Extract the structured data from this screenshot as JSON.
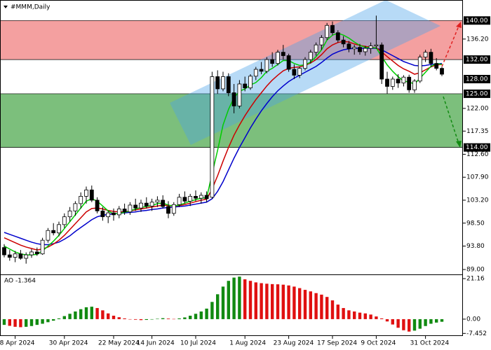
{
  "chart_data": [
    {
      "type": "candlestick",
      "title": "#MMM,Daily",
      "categories": [
        null,
        null,
        "8 Apr 2024",
        null,
        null,
        null,
        null,
        null,
        null,
        null,
        null,
        "30 Apr 2024",
        null,
        null,
        null,
        null,
        null,
        null,
        null,
        null,
        "22 May 2024",
        null,
        null,
        null,
        null,
        null,
        null,
        "14 Jun 2024",
        null,
        null,
        null,
        null,
        null,
        null,
        null,
        "10 Jul 2024",
        null,
        null,
        null,
        null,
        null,
        null,
        null,
        null,
        "1 Aug 2024",
        null,
        null,
        null,
        null,
        null,
        null,
        null,
        "23 Aug 2024",
        null,
        null,
        null,
        null,
        null,
        null,
        null,
        "17 Sep 2024",
        null,
        null,
        null,
        null,
        null,
        null,
        null,
        "9 Oct 2024",
        null,
        null,
        null,
        null,
        null,
        null,
        null,
        null,
        "31 Oct 2024",
        null,
        null,
        null
      ],
      "candles": [
        [
          93.5,
          94.2,
          91.5,
          92.0
        ],
        [
          92,
          93,
          90.8,
          91.5
        ],
        [
          91.5,
          92.8,
          90.5,
          92.2
        ],
        [
          92.2,
          93,
          91,
          91.3
        ],
        [
          91.3,
          92.5,
          90.2,
          92
        ],
        [
          92,
          93.2,
          91.4,
          92.6
        ],
        [
          92.6,
          93.5,
          91.8,
          92.2
        ],
        [
          92.2,
          95.5,
          92,
          95
        ],
        [
          95,
          97.5,
          94.5,
          97
        ],
        [
          97,
          98.5,
          96,
          96.5
        ],
        [
          96.5,
          98.8,
          95.8,
          98.2
        ],
        [
          98.2,
          100.5,
          97.5,
          99.8
        ],
        [
          99.8,
          101.8,
          98.8,
          101
        ],
        [
          101,
          103,
          100,
          102.5
        ],
        [
          102.5,
          104.8,
          101.5,
          104
        ],
        [
          104,
          106,
          102.5,
          105.3
        ],
        [
          105.3,
          106.2,
          102.8,
          103.2
        ],
        [
          103.2,
          103.8,
          100.5,
          101
        ],
        [
          101,
          101.8,
          99,
          99.8
        ],
        [
          99.8,
          101,
          98.5,
          100.6
        ],
        [
          100.6,
          101.5,
          99,
          100.2
        ],
        [
          100.2,
          102,
          99.5,
          101.4
        ],
        [
          101.4,
          102.5,
          100.2,
          100.8
        ],
        [
          100.8,
          102.8,
          100.2,
          102.2
        ],
        [
          102.2,
          103.5,
          101,
          101.6
        ],
        [
          101.6,
          103.3,
          100.8,
          102.6
        ],
        [
          102.6,
          103.8,
          101.5,
          102
        ],
        [
          102,
          103.5,
          101,
          102.8
        ],
        [
          102.8,
          104,
          101.8,
          103.2
        ],
        [
          103.2,
          104.2,
          101.5,
          101.9
        ],
        [
          101.9,
          103,
          99.5,
          100.5
        ],
        [
          100.5,
          102.8,
          100,
          102.3
        ],
        [
          102.3,
          104.5,
          101.8,
          103.8
        ],
        [
          103.8,
          105,
          102.5,
          103
        ],
        [
          103,
          104.5,
          102,
          104
        ],
        [
          104,
          105.2,
          103,
          103.6
        ],
        [
          103.6,
          104.8,
          102.5,
          104.2
        ],
        [
          104.2,
          105,
          102.8,
          103.5
        ],
        [
          103.8,
          129.5,
          103.5,
          128.5
        ],
        [
          128.5,
          129.8,
          125,
          126
        ],
        [
          126,
          129.5,
          125.5,
          128.5
        ],
        [
          128.5,
          129.2,
          124.5,
          125.2
        ],
        [
          125.2,
          127,
          121,
          122.5
        ],
        [
          122.5,
          127.8,
          122,
          127
        ],
        [
          127,
          128.5,
          125.5,
          126.2
        ],
        [
          126.2,
          129,
          125.8,
          128.6
        ],
        [
          128.6,
          130.5,
          127.8,
          130
        ],
        [
          130,
          131.5,
          129,
          129.6
        ],
        [
          129.6,
          132.5,
          129.2,
          132
        ],
        [
          132,
          133.5,
          130.5,
          131.2
        ],
        [
          131.2,
          134,
          130.8,
          133.5
        ],
        [
          133.5,
          135,
          132,
          132.8
        ],
        [
          132.8,
          133.2,
          129.5,
          130
        ],
        [
          130,
          131,
          128,
          128.8
        ],
        [
          128.8,
          130.5,
          128.2,
          130.2
        ],
        [
          130.2,
          132.5,
          129.8,
          132
        ],
        [
          132,
          134,
          131.2,
          133.5
        ],
        [
          133.5,
          135.5,
          132.8,
          135
        ],
        [
          135,
          137,
          134,
          136.5
        ],
        [
          136.5,
          139.5,
          136,
          139
        ],
        [
          139,
          139.8,
          137,
          137.5
        ],
        [
          137.5,
          138,
          135.5,
          136
        ],
        [
          136,
          136.8,
          134.5,
          135.2
        ],
        [
          135.2,
          135.8,
          133.5,
          134.2
        ],
        [
          134.2,
          135,
          133,
          134.5
        ],
        [
          134.5,
          135.2,
          133,
          133.6
        ],
        [
          133.6,
          134.8,
          132.8,
          134.3
        ],
        [
          134.3,
          135.5,
          133.2,
          134.8
        ],
        [
          134.8,
          141,
          134.2,
          135
        ],
        [
          135,
          135.5,
          127,
          128
        ],
        [
          128,
          129.5,
          125,
          126.5
        ],
        [
          126.5,
          128.5,
          125.8,
          128
        ],
        [
          128,
          129,
          126.2,
          127.2
        ],
        [
          127.2,
          128.8,
          126.5,
          128.4
        ],
        [
          128.4,
          128.9,
          125.2,
          125.8
        ],
        [
          125.8,
          128,
          125.2,
          127.6
        ],
        [
          127.6,
          133,
          127.2,
          132.5
        ],
        [
          132.5,
          134,
          131.5,
          133.5
        ],
        [
          133.5,
          134.2,
          130.5,
          131.2
        ],
        [
          131.2,
          132.3,
          129.8,
          130.2
        ],
        [
          130.2,
          130.5,
          128.6,
          129
        ]
      ],
      "up_color": "#ffffff",
      "down_color": "#000000",
      "series": [
        {
          "color": "#0000cc",
          "values": [
            96.6,
            96.2,
            95.8,
            95.4,
            95,
            94.6,
            94.3,
            94.1,
            94.1,
            94.3,
            94.6,
            95.2,
            95.9,
            96.8,
            97.6,
            98.4,
            99.2,
            99.8,
            100.1,
            100.3,
            100.4,
            100.5,
            100.6,
            100.7,
            100.8,
            101,
            101.1,
            101.3,
            101.4,
            101.6,
            101.7,
            101.8,
            101.9,
            102,
            102.2,
            102.4,
            102.6,
            102.8,
            103.5,
            105,
            107,
            109.4,
            111.8,
            114,
            116,
            118,
            119.8,
            121.5,
            123,
            124.4,
            125.6,
            126.6,
            127.5,
            128.2,
            128.8,
            129.4,
            130,
            130.6,
            131.4,
            132.3,
            133.1,
            133.6,
            134,
            134.2,
            134.3,
            134.3,
            134.3,
            134.3,
            134.3,
            134,
            133.4,
            132.8,
            132.2,
            131.6,
            131.2,
            130.8,
            130.7,
            130.8,
            131,
            131.1,
            131.2
          ]
        },
        {
          "color": "#cc0000",
          "values": [
            95.5,
            95,
            94.5,
            94,
            93.6,
            93.3,
            93,
            93.2,
            93.6,
            94.2,
            95,
            96,
            97.2,
            98.4,
            99.6,
            100.8,
            101.5,
            101.6,
            101.4,
            101.1,
            100.9,
            100.8,
            100.8,
            101,
            101.2,
            101.4,
            101.6,
            101.8,
            102,
            102.2,
            102.1,
            102,
            102.1,
            102.3,
            102.6,
            102.9,
            103.2,
            103.4,
            105.5,
            108.2,
            111.2,
            114,
            116.5,
            118.6,
            120.5,
            122.2,
            123.8,
            125.2,
            126.6,
            127.8,
            128.8,
            129.7,
            130.2,
            130.4,
            130.5,
            130.8,
            131.3,
            132,
            133,
            134.2,
            135,
            135.5,
            135.7,
            135.6,
            135.2,
            134.9,
            134.7,
            134.5,
            134.4,
            133.6,
            132.6,
            131.7,
            130.8,
            130.1,
            129.6,
            129,
            129.3,
            129.9,
            130.5,
            130.9,
            131
          ]
        },
        {
          "color": "#00cc00",
          "values": [
            93.8,
            93.2,
            92.6,
            92.2,
            92,
            92,
            92.1,
            92.8,
            93.8,
            94.8,
            96,
            97.4,
            98.8,
            100.2,
            101.6,
            103,
            103.5,
            103,
            102,
            101,
            100.4,
            100.5,
            100.7,
            101,
            101.4,
            101.7,
            101.9,
            102.1,
            102.5,
            102.6,
            102.2,
            102,
            102.2,
            102.6,
            103,
            103.3,
            103.6,
            103.7,
            108.6,
            113.4,
            118.6,
            121.8,
            124.2,
            125.5,
            126,
            126.8,
            127.3,
            128.3,
            129.6,
            130.2,
            131,
            131.8,
            131.8,
            131.2,
            130.8,
            130.9,
            131.5,
            132.6,
            134,
            136,
            137,
            137.4,
            137,
            136.4,
            135.6,
            134.9,
            134.5,
            134.4,
            134.4,
            132.6,
            130.9,
            129.6,
            128.5,
            127.6,
            127.4,
            127,
            128.2,
            129.4,
            130.6,
            131.2,
            131
          ]
        }
      ],
      "ylim": [
        88,
        144.2
      ],
      "yticks": [
        {
          "value": 136.2,
          "label": "136.20"
        },
        {
          "value": 122,
          "label": "122.00"
        },
        {
          "value": 117.35,
          "label": "117.35"
        },
        {
          "value": 112.6,
          "label": "112.60"
        },
        {
          "value": 107.9,
          "label": "107.90"
        },
        {
          "value": 103.2,
          "label": "103.20"
        },
        {
          "value": 98.5,
          "label": "98.50"
        },
        {
          "value": 93.8,
          "label": "93.80"
        },
        {
          "value": 89,
          "label": "89.00"
        }
      ],
      "levels": [
        {
          "value": 140,
          "label": "140.00"
        },
        {
          "value": 132,
          "label": "132.00"
        },
        {
          "value": 128,
          "label": "128.00"
        },
        {
          "value": 125,
          "label": "125.00"
        },
        {
          "value": 114,
          "label": "114.00"
        }
      ],
      "zones": [
        {
          "from": 132,
          "to": 140,
          "color": "#f4a0a0"
        },
        {
          "from": 114,
          "to": 125,
          "color": "#7cbf7c"
        }
      ]
    },
    {
      "type": "bar",
      "title": "AO -1.364",
      "values": [
        -3,
        -3.5,
        -4,
        -4.2,
        -4,
        -3.6,
        -3,
        -2.4,
        -1.6,
        -0.8,
        0.4,
        1.6,
        2.8,
        4,
        5.2,
        6.2,
        6.5,
        5.8,
        4.6,
        3,
        1.8,
        1,
        0.4,
        0,
        -0.3,
        -0.5,
        -0.4,
        -0.2,
        0.2,
        0.5,
        0.3,
        0.1,
        0.4,
        0.9,
        1.8,
        2.8,
        4,
        5.5,
        9,
        13,
        17,
        20,
        21.7,
        22.2,
        20.8,
        20,
        19.2,
        18.8,
        18.5,
        18.3,
        18.2,
        18,
        17.6,
        17,
        16.2,
        15.3,
        14.5,
        13.6,
        12.8,
        11.6,
        9.8,
        7.6,
        5.8,
        4.6,
        4,
        3.4,
        3,
        2.4,
        1.4,
        0.4,
        -1.2,
        -2.8,
        -4.5,
        -5.8,
        -6.5,
        -6,
        -5,
        -3.6,
        -2.4,
        -1.8,
        -1.364
      ],
      "up_color": "#118a11",
      "down_color": "#e01010",
      "ylim": [
        -8.8,
        23
      ],
      "yticks": [
        {
          "value": 21.16,
          "label": "21.16"
        },
        {
          "value": 0,
          "label": "0.00"
        },
        {
          "value": -7.452,
          "label": "-7.452"
        }
      ]
    }
  ]
}
